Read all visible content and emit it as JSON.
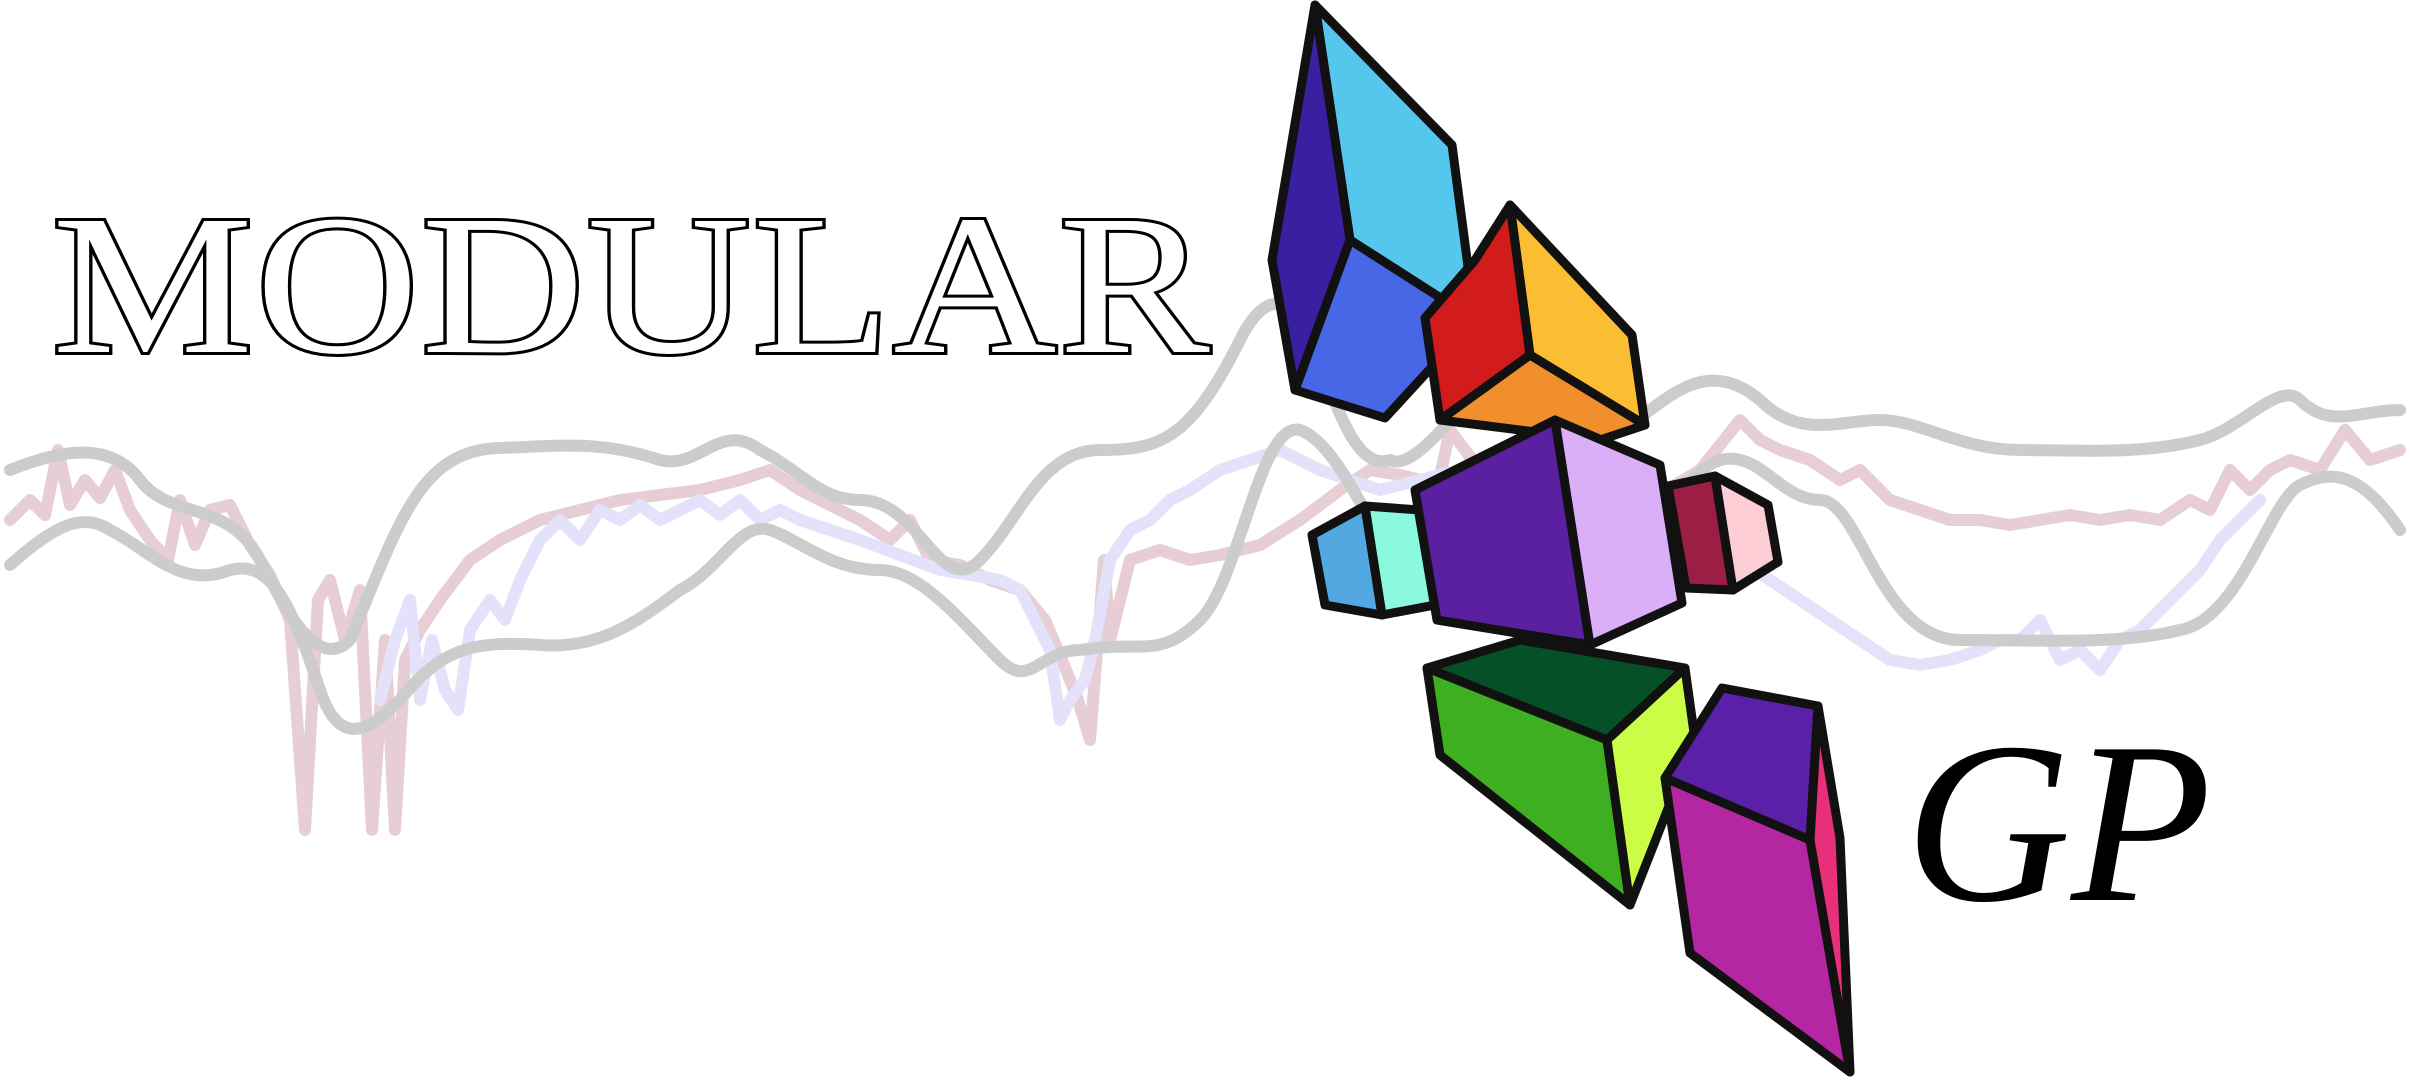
{
  "logo": {
    "word_primary": "MODULAR",
    "word_secondary": "GP",
    "colors": {
      "background": "#ffffff",
      "text_fill": "#ffffff",
      "text_stroke": "#000000",
      "wave_mean": "#cccccc",
      "wave_noisy_a": "#e6cdd6",
      "wave_noisy_b": "#e4e2fb",
      "outline": "#111111"
    },
    "blocks": [
      {
        "name": "blue-block",
        "colors": [
          "#55c7ed",
          "#3a20a0",
          "#4867e6"
        ]
      },
      {
        "name": "orange-block",
        "colors": [
          "#fbbd32",
          "#d21c1c",
          "#f08f2b"
        ]
      },
      {
        "name": "purple-block",
        "colors": [
          "#db aef8",
          "#5a20a0"
        ]
      },
      {
        "name": "green-block",
        "colors": [
          "#065028",
          "#3faf22",
          "#ccfd46"
        ]
      },
      {
        "name": "magenta-block",
        "colors": [
          "#5a20a8",
          "#b527a2",
          "#e8307a"
        ]
      }
    ]
  }
}
